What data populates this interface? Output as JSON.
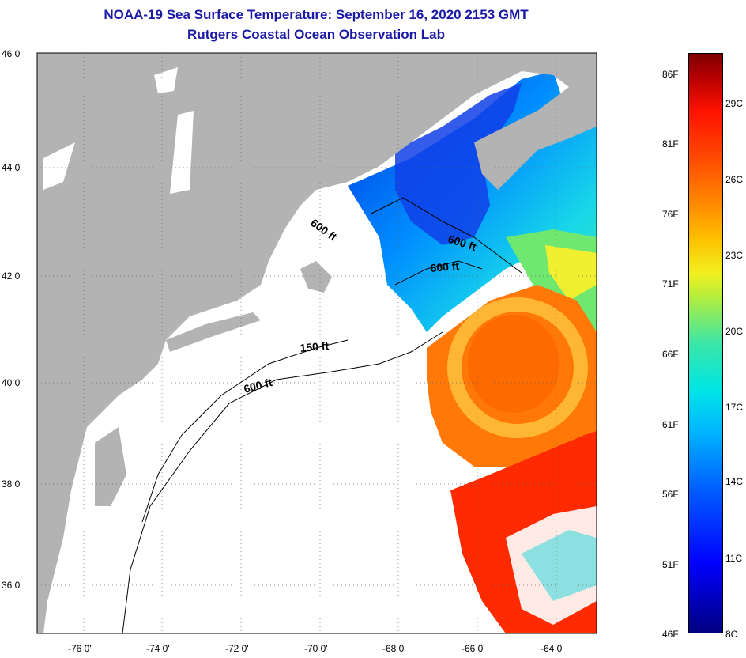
{
  "title": {
    "line1": "NOAA-19 Sea Surface Temperature:  September 16, 2020 2153 GMT",
    "line2": "Rutgers Coastal Ocean Observation Lab"
  },
  "map": {
    "lat_labels": [
      "46 0'",
      "44 0'",
      "42 0'",
      "40 0'",
      "38 0'",
      "36 0'"
    ],
    "lon_labels": [
      "-76 0'",
      "-74 0'",
      "-72 0'",
      "-70 0'",
      "-68 0'",
      "-66 0'",
      "-64 0'"
    ],
    "contour_labels": [
      "600 ft",
      "600 ft",
      "600 ft",
      "150 ft",
      "600 ft"
    ],
    "colors": {
      "land": "#b3b3b3",
      "cloud": "#ffffff",
      "contour": "#000000"
    }
  },
  "colorbar": {
    "fahrenheit": [
      "86F",
      "81F",
      "76F",
      "71F",
      "66F",
      "61F",
      "56F",
      "51F",
      "46F"
    ],
    "celsius": [
      "29C",
      "26C",
      "23C",
      "20C",
      "17C",
      "14C",
      "11C",
      "8C"
    ]
  }
}
